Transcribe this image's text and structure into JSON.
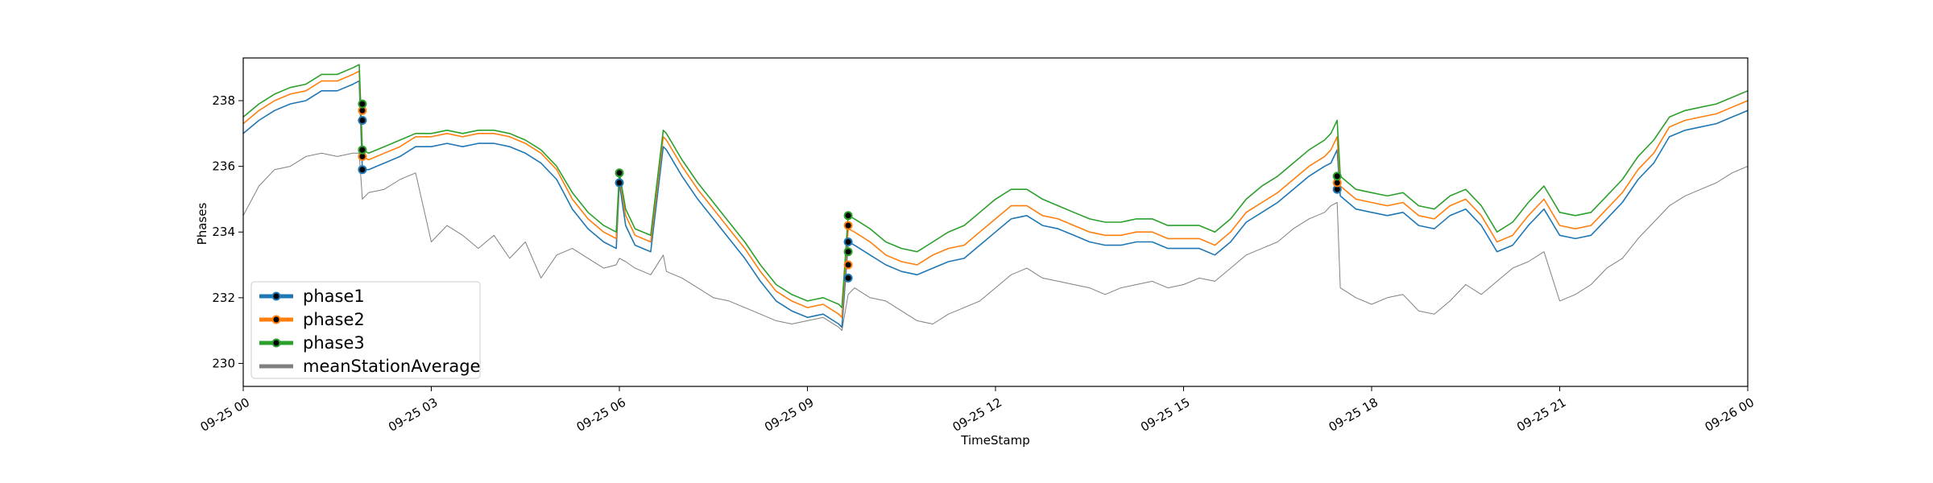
{
  "chart_data": {
    "type": "line",
    "title": "",
    "xlabel": "TimeStamp",
    "ylabel": "Phases",
    "xlim": [
      "09-25 00:00",
      "09-26 00:00"
    ],
    "ylim": [
      229.3,
      239.3
    ],
    "y_ticks": [
      230,
      232,
      234,
      236,
      238
    ],
    "x_ticks": [
      "09-25 00",
      "09-25 03",
      "09-25 06",
      "09-25 09",
      "09-25 12",
      "09-25 15",
      "09-25 18",
      "09-25 21",
      "09-26 00"
    ],
    "grid": false,
    "legend_position": "lower-left",
    "colors": {
      "phase1": "#1f77b4",
      "phase2": "#ff7f0e",
      "phase3": "#2ca02c",
      "meanStationAverage": "#808080"
    },
    "x_hours": [
      0,
      0.25,
      0.5,
      0.75,
      1.0,
      1.25,
      1.5,
      1.75,
      1.85,
      1.9,
      2.0,
      2.25,
      2.5,
      2.75,
      3.0,
      3.25,
      3.5,
      3.75,
      4.0,
      4.25,
      4.5,
      4.75,
      5.0,
      5.25,
      5.5,
      5.75,
      5.95,
      6.0,
      6.1,
      6.25,
      6.5,
      6.7,
      6.75,
      7.0,
      7.25,
      7.5,
      7.75,
      8.0,
      8.25,
      8.5,
      8.75,
      9.0,
      9.25,
      9.5,
      9.55,
      9.65,
      9.75,
      10.0,
      10.25,
      10.5,
      10.75,
      11.0,
      11.25,
      11.5,
      11.75,
      12.0,
      12.25,
      12.5,
      12.75,
      13.0,
      13.25,
      13.5,
      13.75,
      14.0,
      14.25,
      14.5,
      14.75,
      15.0,
      15.25,
      15.5,
      15.75,
      16.0,
      16.25,
      16.5,
      16.75,
      17.0,
      17.25,
      17.35,
      17.45,
      17.5,
      17.75,
      18.0,
      18.25,
      18.5,
      18.75,
      19.0,
      19.25,
      19.5,
      19.75,
      20.0,
      20.25,
      20.5,
      20.75,
      21.0,
      21.25,
      21.5,
      21.75,
      22.0,
      22.25,
      22.5,
      22.75,
      23.0,
      23.25,
      23.5,
      23.75,
      24.0
    ],
    "series": [
      {
        "name": "phase1",
        "values": [
          237.0,
          237.4,
          237.7,
          237.9,
          238.0,
          238.3,
          238.3,
          238.5,
          238.6,
          235.9,
          235.9,
          236.1,
          236.3,
          236.6,
          236.6,
          236.7,
          236.6,
          236.7,
          236.7,
          236.6,
          236.4,
          236.1,
          235.6,
          234.7,
          234.1,
          233.7,
          233.5,
          235.5,
          234.2,
          233.6,
          233.4,
          236.6,
          236.5,
          235.7,
          235.0,
          234.4,
          233.8,
          233.2,
          232.5,
          231.9,
          231.6,
          231.4,
          231.5,
          231.2,
          231.1,
          233.7,
          233.6,
          233.3,
          233.0,
          232.8,
          232.7,
          232.9,
          233.1,
          233.2,
          233.6,
          234.0,
          234.4,
          234.5,
          234.2,
          234.1,
          233.9,
          233.7,
          233.6,
          233.6,
          233.7,
          233.7,
          233.5,
          233.5,
          233.5,
          233.3,
          233.7,
          234.3,
          234.6,
          234.9,
          235.3,
          235.7,
          236.0,
          236.1,
          236.5,
          235.1,
          234.7,
          234.6,
          234.5,
          234.6,
          234.2,
          234.1,
          234.5,
          234.7,
          234.2,
          233.4,
          233.6,
          234.2,
          234.7,
          233.9,
          233.8,
          233.9,
          234.4,
          234.9,
          235.6,
          236.1,
          236.9,
          237.1,
          237.2,
          237.3,
          237.5,
          237.7
        ]
      },
      {
        "name": "phase2",
        "values": [
          237.3,
          237.7,
          238.0,
          238.2,
          238.3,
          238.6,
          238.6,
          238.8,
          238.9,
          236.3,
          236.2,
          236.4,
          236.6,
          236.9,
          236.9,
          237.0,
          236.9,
          237.0,
          237.0,
          236.9,
          236.7,
          236.4,
          235.9,
          235.0,
          234.4,
          234.0,
          233.8,
          235.7,
          234.5,
          233.9,
          233.7,
          236.9,
          236.8,
          236.0,
          235.3,
          234.7,
          234.1,
          233.5,
          232.8,
          232.2,
          231.9,
          231.7,
          231.8,
          231.5,
          231.4,
          234.1,
          234.0,
          233.7,
          233.3,
          233.1,
          233.0,
          233.3,
          233.5,
          233.6,
          234.0,
          234.4,
          234.8,
          234.8,
          234.5,
          234.4,
          234.2,
          234.0,
          233.9,
          233.9,
          234.0,
          234.0,
          233.8,
          233.8,
          233.8,
          233.6,
          234.0,
          234.6,
          234.9,
          235.2,
          235.6,
          236.0,
          236.3,
          236.5,
          236.9,
          235.4,
          235.0,
          234.9,
          234.8,
          234.9,
          234.5,
          234.4,
          234.8,
          235.0,
          234.5,
          233.7,
          233.9,
          234.5,
          235.0,
          234.2,
          234.1,
          234.2,
          234.7,
          235.2,
          235.9,
          236.4,
          237.2,
          237.4,
          237.5,
          237.6,
          237.8,
          238.0
        ]
      },
      {
        "name": "phase3",
        "values": [
          237.5,
          237.9,
          238.2,
          238.4,
          238.5,
          238.8,
          238.8,
          239.0,
          239.1,
          236.5,
          236.4,
          236.6,
          236.8,
          237.0,
          237.0,
          237.1,
          237.0,
          237.1,
          237.1,
          237.0,
          236.8,
          236.5,
          236.0,
          235.2,
          234.6,
          234.2,
          234.0,
          235.8,
          234.7,
          234.1,
          233.9,
          237.1,
          237.0,
          236.2,
          235.5,
          234.9,
          234.3,
          233.7,
          233.0,
          232.4,
          232.1,
          231.9,
          232.0,
          231.8,
          231.7,
          234.5,
          234.4,
          234.1,
          233.7,
          233.5,
          233.4,
          233.7,
          234.0,
          234.2,
          234.6,
          235.0,
          235.3,
          235.3,
          235.0,
          234.8,
          234.6,
          234.4,
          234.3,
          234.3,
          234.4,
          234.4,
          234.2,
          234.2,
          234.2,
          234.0,
          234.4,
          235.0,
          235.4,
          235.7,
          236.1,
          236.5,
          236.8,
          237.0,
          237.4,
          235.7,
          235.3,
          235.2,
          235.1,
          235.2,
          234.8,
          234.7,
          235.1,
          235.3,
          234.8,
          234.0,
          234.3,
          234.9,
          235.4,
          234.6,
          234.5,
          234.6,
          235.1,
          235.6,
          236.3,
          236.8,
          237.5,
          237.7,
          237.8,
          237.9,
          238.1,
          238.3
        ]
      },
      {
        "name": "meanStationAverage",
        "values": [
          234.5,
          235.4,
          235.9,
          236.0,
          236.3,
          236.4,
          236.3,
          236.4,
          236.4,
          235.0,
          235.2,
          235.3,
          235.6,
          235.8,
          233.7,
          234.2,
          233.9,
          233.5,
          233.9,
          233.2,
          233.7,
          232.6,
          233.3,
          233.5,
          233.2,
          232.9,
          233.0,
          233.2,
          233.1,
          232.9,
          232.7,
          233.3,
          232.8,
          232.6,
          232.3,
          232.0,
          231.9,
          231.7,
          231.5,
          231.3,
          231.2,
          231.3,
          231.4,
          231.1,
          231.0,
          232.1,
          232.3,
          232.0,
          231.9,
          231.6,
          231.3,
          231.2,
          231.5,
          231.7,
          231.9,
          232.3,
          232.7,
          232.9,
          232.6,
          232.5,
          232.4,
          232.3,
          232.1,
          232.3,
          232.4,
          232.5,
          232.3,
          232.4,
          232.6,
          232.5,
          232.9,
          233.3,
          233.5,
          233.7,
          234.1,
          234.4,
          234.6,
          234.8,
          234.9,
          232.3,
          232.0,
          231.8,
          232.0,
          232.1,
          231.6,
          231.5,
          231.9,
          232.4,
          232.1,
          232.5,
          232.9,
          233.1,
          233.4,
          231.9,
          232.1,
          232.4,
          232.9,
          233.2,
          233.8,
          234.3,
          234.8,
          235.1,
          235.3,
          235.5,
          235.8,
          236.0
        ]
      }
    ],
    "markers": [
      {
        "series": "phase1",
        "x": 1.9,
        "y": 235.9
      },
      {
        "series": "phase2",
        "x": 1.9,
        "y": 236.3
      },
      {
        "series": "phase3",
        "x": 1.9,
        "y": 236.5
      },
      {
        "series": "phase1",
        "x": 1.9,
        "y": 237.4
      },
      {
        "series": "phase2",
        "x": 1.9,
        "y": 237.7
      },
      {
        "series": "phase3",
        "x": 1.9,
        "y": 237.9
      },
      {
        "series": "phase1",
        "x": 6.0,
        "y": 235.5
      },
      {
        "series": "phase3",
        "x": 6.0,
        "y": 235.8
      },
      {
        "series": "phase1",
        "x": 9.65,
        "y": 232.6
      },
      {
        "series": "phase2",
        "x": 9.65,
        "y": 233.0
      },
      {
        "series": "phase3",
        "x": 9.65,
        "y": 233.4
      },
      {
        "series": "phase1",
        "x": 9.65,
        "y": 233.7
      },
      {
        "series": "phase2",
        "x": 9.65,
        "y": 234.2
      },
      {
        "series": "phase3",
        "x": 9.65,
        "y": 234.5
      },
      {
        "series": "phase1",
        "x": 17.45,
        "y": 235.3
      },
      {
        "series": "phase2",
        "x": 17.45,
        "y": 235.5
      },
      {
        "series": "phase3",
        "x": 17.45,
        "y": 235.7
      }
    ]
  }
}
